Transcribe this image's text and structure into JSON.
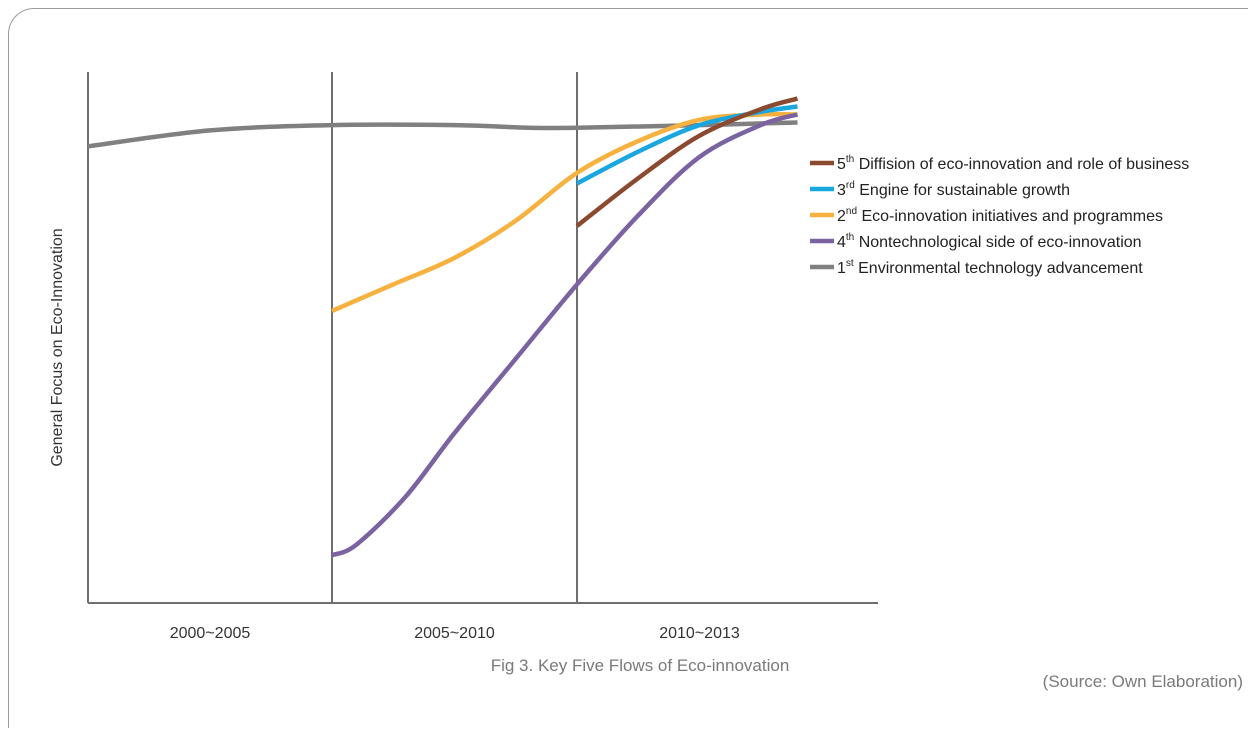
{
  "chart_data": {
    "type": "line",
    "title": "",
    "ylabel": "General Focus on Eco-Innovation",
    "xlabel": "",
    "categories": [
      "2000~2005",
      "2005~2010",
      "2010~2013"
    ],
    "xlim": [
      0,
      3
    ],
    "ylim": [
      0,
      10
    ],
    "grid": "vertical period dividers",
    "legend_position": "right",
    "series": [
      {
        "order": "5",
        "suffix": "th",
        "name": "Diffision of eco-innovation and role of business",
        "color": "#8b4a2f",
        "x": [
          2.0,
          2.25,
          2.5,
          2.75,
          2.9
        ],
        "y": [
          7.1,
          8.0,
          8.8,
          9.3,
          9.5
        ]
      },
      {
        "order": "3",
        "suffix": "rd",
        "name": "Engine for sustainable growth",
        "color": "#1aa7df",
        "x": [
          2.0,
          2.25,
          2.5,
          2.75,
          2.9
        ],
        "y": [
          7.9,
          8.5,
          9.0,
          9.25,
          9.35
        ]
      },
      {
        "order": "2",
        "suffix": "nd",
        "name": "Eco-innovation initiatives and programmes",
        "color": "#f7b13f",
        "x": [
          1.0,
          1.25,
          1.5,
          1.75,
          2.0,
          2.25,
          2.5,
          2.75,
          2.9
        ],
        "y": [
          5.5,
          6.0,
          6.5,
          7.2,
          8.1,
          8.7,
          9.1,
          9.2,
          9.2
        ]
      },
      {
        "order": "4",
        "suffix": "th",
        "name": "Nontechnological side of eco-innovation",
        "color": "#7a63a0",
        "x": [
          1.0,
          1.1,
          1.3,
          1.5,
          1.75,
          2.0,
          2.25,
          2.5,
          2.75,
          2.9
        ],
        "y": [
          0.9,
          1.1,
          2.0,
          3.2,
          4.6,
          6.0,
          7.3,
          8.4,
          9.0,
          9.2
        ]
      },
      {
        "order": "1",
        "suffix": "st",
        "name": "Environmental technology advancement",
        "color": "#808080",
        "x": [
          0.0,
          0.5,
          1.0,
          1.5,
          1.8,
          2.0,
          2.5,
          2.9
        ],
        "y": [
          8.6,
          8.9,
          9.0,
          9.0,
          8.95,
          8.95,
          9.0,
          9.05
        ]
      }
    ]
  },
  "caption": "Fig 3. Key Five Flows of Eco-innovation",
  "source": "(Source: Own Elaboration)"
}
